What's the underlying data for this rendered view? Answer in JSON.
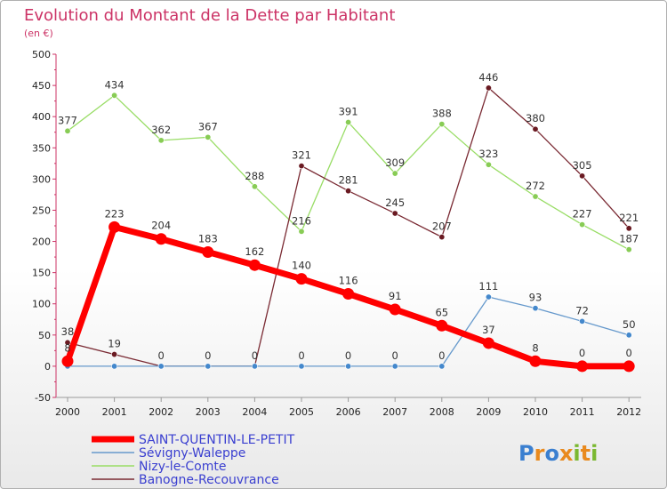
{
  "chart_data": {
    "type": "line",
    "title": "Evolution du Montant de la Dette par Habitant",
    "subtitle": "(en €)",
    "ylim": [
      -50,
      500
    ],
    "yticks": [
      -50,
      0,
      50,
      100,
      150,
      200,
      250,
      300,
      350,
      400,
      450,
      500
    ],
    "x": [
      "2000",
      "2001",
      "2002",
      "2003",
      "2004",
      "2005",
      "2006",
      "2007",
      "2008",
      "2009",
      "2010",
      "2011",
      "2012"
    ],
    "series": [
      {
        "name": "Nizy-le-Comte",
        "color": "#99dd66",
        "markerFill": "#88cc55",
        "values": [
          377,
          434,
          362,
          367,
          288,
          216,
          391,
          309,
          388,
          323,
          272,
          227,
          187
        ],
        "labels": [
          "377",
          "434",
          "362",
          "367",
          "288",
          "216",
          "391",
          "309",
          "388",
          "323",
          "272",
          "227",
          "187"
        ]
      },
      {
        "name": "Banogne-Recouvrance",
        "color": "#7a2a33",
        "markerFill": "#6a1a22",
        "values": [
          38,
          19,
          0,
          0,
          0,
          321,
          281,
          245,
          207,
          446,
          380,
          305,
          221
        ],
        "labels": [
          "38",
          "19",
          "0",
          "0",
          "0",
          "321",
          "281",
          "245",
          "207",
          "446",
          "380",
          "305",
          "221"
        ]
      },
      {
        "name": "Sévigny-Waleppe",
        "color": "#6699cc",
        "markerFill": "#4488cc",
        "values": [
          0,
          0,
          0,
          0,
          0,
          0,
          0,
          0,
          0,
          111,
          93,
          72,
          50
        ],
        "labels": [
          "",
          "",
          "",
          "",
          "",
          "0",
          "0",
          "0",
          "0",
          "111",
          "93",
          "72",
          "50"
        ]
      },
      {
        "name": "SAINT-QUENTIN-LE-PETIT",
        "color": "#ff0000",
        "markerFill": "#ff0000",
        "values": [
          8,
          223,
          204,
          183,
          162,
          140,
          116,
          91,
          65,
          37,
          8,
          0,
          0
        ],
        "labels": [
          "8",
          "223",
          "204",
          "183",
          "162",
          "140",
          "116",
          "91",
          "65",
          "37",
          "8",
          "0",
          "0"
        ]
      }
    ],
    "legend": [
      "SAINT-QUENTIN-LE-PETIT",
      "Sévigny-Waleppe",
      "Nizy-le-Comte",
      "Banogne-Recouvrance"
    ],
    "legend_position": "bottom-left"
  },
  "watermark": "Proxiti"
}
